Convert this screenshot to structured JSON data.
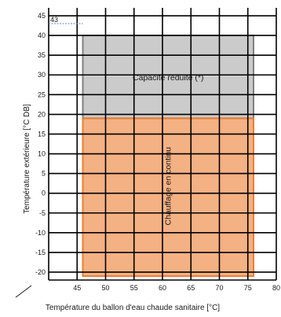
{
  "chart_data": {
    "type": "area",
    "xlabel": "Température du ballon d'eau chaude sanitaire [°C]",
    "ylabel": "Température extérieure [°C DB]",
    "xlim": [
      40,
      80
    ],
    "ylim": [
      -22,
      47
    ],
    "x_ticks": [
      45,
      50,
      55,
      60,
      65,
      70,
      75,
      80
    ],
    "y_ticks": [
      -20,
      -15,
      -10,
      -5,
      0,
      5,
      10,
      15,
      20,
      25,
      30,
      35,
      40,
      45
    ],
    "grid": true,
    "zones": [
      {
        "label": "Capacité réduite (*)",
        "x_range": [
          46,
          76
        ],
        "y_range": [
          19,
          40
        ],
        "fill": "#cbcbcb",
        "stroke": "#808080",
        "label_orientation": "horizontal"
      },
      {
        "label": "Chauffage en continu",
        "x_range": [
          46,
          76
        ],
        "y_range": [
          -21,
          19
        ],
        "fill": "#f4b183",
        "stroke": "#ed7d31",
        "label_orientation": "vertical"
      }
    ],
    "annotations": [
      {
        "text": "43",
        "y": 43,
        "x": 46
      }
    ]
  }
}
